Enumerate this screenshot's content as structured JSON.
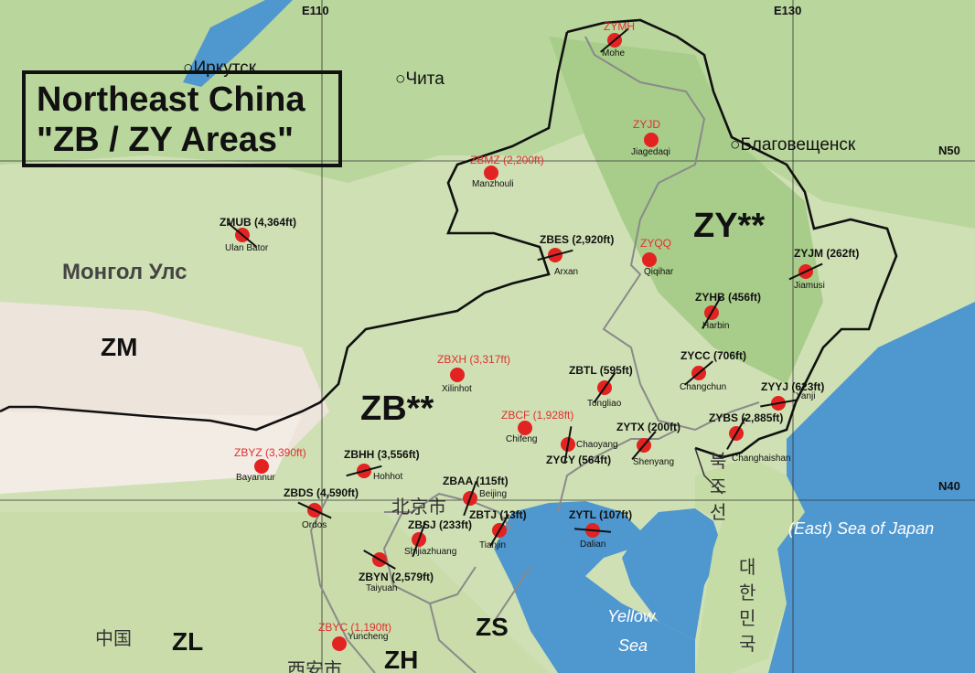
{
  "title": {
    "line1": "Northeast China",
    "line2": "\"ZB / ZY Areas\""
  },
  "grid": {
    "lon_left": "E110",
    "lon_right": "E130",
    "lat_top": "N50",
    "lat_bottom": "N40"
  },
  "regions": {
    "zy": "ZY**",
    "zb": "ZB**",
    "zm": "ZM",
    "zl": "ZL",
    "zs": "ZS",
    "zh": "ZH"
  },
  "places": {
    "irkutsk": "Иркутск",
    "chita": "Чита",
    "blagoveshchensk": "Благовещенск",
    "mongolia": "Монгол Улс",
    "beijing_cn": "北京市",
    "china_cn": "中国",
    "xian_cn": "西安市",
    "north_korea_1": "북",
    "north_korea_2": "조",
    "north_korea_3": "선",
    "south_korea_1": "대",
    "south_korea_2": "한",
    "south_korea_3": "민",
    "south_korea_4": "국",
    "east_sea": "(East) Sea of Japan",
    "yellow_sea_1": "Yellow",
    "yellow_sea_2": "Sea"
  },
  "airports": [
    {
      "code": "ZYMH",
      "city": "Mohe",
      "red": true
    },
    {
      "code": "ZYJD",
      "city": "Jiagedaqi",
      "red": true
    },
    {
      "code": "ZBMZ (2,200ft)",
      "city": "Manzhouli",
      "red": true
    },
    {
      "code": "ZMUB (4,364ft)",
      "city": "Ulan Bator",
      "red": false
    },
    {
      "code": "ZBES (2,920ft)",
      "city": "Arxan",
      "red": false
    },
    {
      "code": "ZYQQ",
      "city": "Qiqihar",
      "red": true
    },
    {
      "code": "ZYJM (262ft)",
      "city": "Jiamusi",
      "red": false
    },
    {
      "code": "ZYHB (456ft)",
      "city": "Harbin",
      "red": false
    },
    {
      "code": "ZBXH (3,317ft)",
      "city": "Xilinhot",
      "red": true
    },
    {
      "code": "ZBTL (595ft)",
      "city": "Tongliao",
      "red": false
    },
    {
      "code": "ZYCC (706ft)",
      "city": "Changchun",
      "red": false
    },
    {
      "code": "ZYYJ (623ft)",
      "city": "Yanji",
      "red": false
    },
    {
      "code": "ZBCF (1,928ft)",
      "city": "Chifeng",
      "red": true
    },
    {
      "code": "ZYTX (200ft)",
      "city": "Shenyang",
      "red": false
    },
    {
      "code": "ZYBS (2,885ft)",
      "city": "Changhaishan",
      "red": false
    },
    {
      "code": "ZYCY (564ft)",
      "city": "Chaoyang",
      "red": false
    },
    {
      "code": "ZBYZ (3,390ft)",
      "city": "Bayannur",
      "red": true
    },
    {
      "code": "ZBHH (3,556ft)",
      "city": "Hohhot",
      "red": false
    },
    {
      "code": "ZBAA (115ft)",
      "city": "Beijing",
      "red": false
    },
    {
      "code": "ZBDS (4,590ft)",
      "city": "Ordos",
      "red": false
    },
    {
      "code": "ZBTJ (13ft)",
      "city": "Tianjin",
      "red": false
    },
    {
      "code": "ZYTL (107ft)",
      "city": "Dalian",
      "red": false
    },
    {
      "code": "ZBSJ (233ft)",
      "city": "Shijiazhuang",
      "red": false
    },
    {
      "code": "ZBYN (2,579ft)",
      "city": "Taiyuan",
      "red": false
    },
    {
      "code": "ZBYC (1,190ft)",
      "city": "Yuncheng",
      "red": true
    }
  ],
  "colors": {
    "dot": "#e32222",
    "red_text": "#e03030",
    "border": "#111111",
    "sea": "#4f97cf"
  }
}
